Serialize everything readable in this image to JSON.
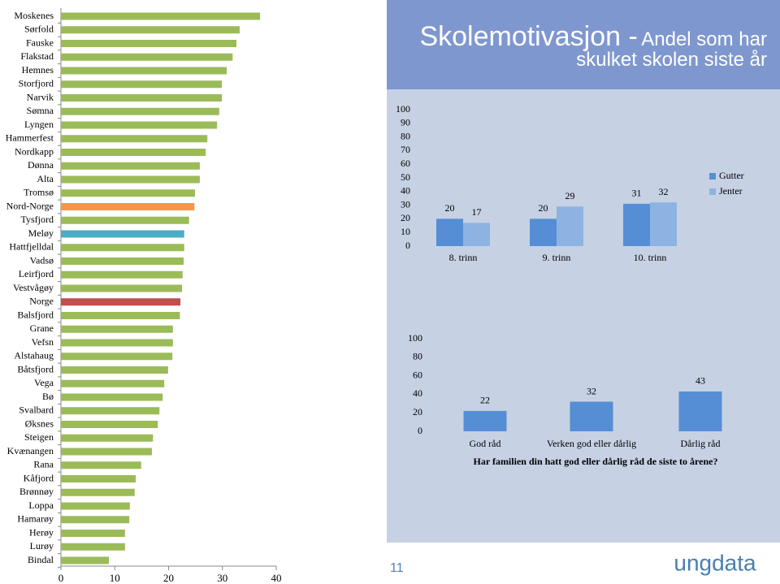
{
  "title": "Skolemotivasjon -",
  "subtitle": "Andel som har skulket skolen siste år",
  "page_number": 11,
  "logo": "ungdata",
  "chart_data": [
    {
      "type": "bar",
      "horizontal": true,
      "categories": [
        "Moskenes",
        "Sørfold",
        "Fauske",
        "Flakstad",
        "Hemnes",
        "Storfjord",
        "Narvik",
        "Sømna",
        "Lyngen",
        "Hammerfest",
        "Nordkapp",
        "Dønna",
        "Alta",
        "Tromsø",
        "Nord-Norge",
        "Tysfjord",
        "Meløy",
        "Hattfjelldal",
        "Vadsø",
        "Leirfjord",
        "Vestvågøy",
        "Norge",
        "Balsfjord",
        "Grane",
        "Vefsn",
        "Alstahaug",
        "Båtsfjord",
        "Vega",
        "Bø",
        "Svalbard",
        "Øksnes",
        "Steigen",
        "Kvænangen",
        "Rana",
        "Kåfjord",
        "Brønnøy",
        "Loppa",
        "Hamarøy",
        "Herøy",
        "Lurøy",
        "Bindal"
      ],
      "values": [
        37,
        33.2,
        32.6,
        31.9,
        30.8,
        29.9,
        29.9,
        29.4,
        29,
        27.2,
        26.9,
        25.8,
        25.8,
        24.9,
        24.8,
        23.8,
        22.9,
        22.9,
        22.8,
        22.6,
        22.5,
        22.2,
        22.1,
        20.8,
        20.8,
        20.7,
        19.9,
        19.2,
        18.9,
        18.3,
        18,
        17.1,
        16.9,
        14.9,
        13.9,
        13.7,
        12.8,
        12.7,
        11.9,
        11.9,
        8.9
      ],
      "colors": [
        "#9bbb59",
        "#9bbb59",
        "#9bbb59",
        "#9bbb59",
        "#9bbb59",
        "#9bbb59",
        "#9bbb59",
        "#9bbb59",
        "#9bbb59",
        "#9bbb59",
        "#9bbb59",
        "#9bbb59",
        "#9bbb59",
        "#9bbb59",
        "#f79646",
        "#9bbb59",
        "#4bacc6",
        "#9bbb59",
        "#9bbb59",
        "#9bbb59",
        "#9bbb59",
        "#c0504d",
        "#9bbb59",
        "#9bbb59",
        "#9bbb59",
        "#9bbb59",
        "#9bbb59",
        "#9bbb59",
        "#9bbb59",
        "#9bbb59",
        "#9bbb59",
        "#9bbb59",
        "#9bbb59",
        "#9bbb59",
        "#9bbb59",
        "#9bbb59",
        "#9bbb59",
        "#9bbb59",
        "#9bbb59",
        "#9bbb59",
        "#9bbb59"
      ],
      "xlim": [
        0,
        40
      ],
      "xticks": [
        0,
        10,
        20,
        30,
        40
      ]
    },
    {
      "type": "grouped-bar",
      "categories": [
        "8. trinn",
        "9. trinn",
        "10. trinn"
      ],
      "series": [
        {
          "name": "Gutter",
          "color": "#558ed5",
          "values": [
            20,
            20,
            31
          ]
        },
        {
          "name": "Jenter",
          "color": "#8db3e2",
          "values": [
            17,
            29,
            32
          ]
        }
      ],
      "ylim": [
        0,
        100
      ],
      "yticks": [
        0,
        10,
        20,
        30,
        40,
        50,
        60,
        70,
        80,
        90,
        100
      ],
      "data_labels": true,
      "legend": "right"
    },
    {
      "type": "bar",
      "categories": [
        "God råd",
        "Verken god eller dårlig",
        "Dårlig råd"
      ],
      "values": [
        22,
        32,
        43
      ],
      "color": "#558ed5",
      "ylim": [
        0,
        100
      ],
      "yticks": [
        0,
        20,
        40,
        60,
        80,
        100
      ],
      "data_labels": true,
      "x_label": "Har familien din hatt god eller dårlig råd de siste to årene?"
    }
  ]
}
